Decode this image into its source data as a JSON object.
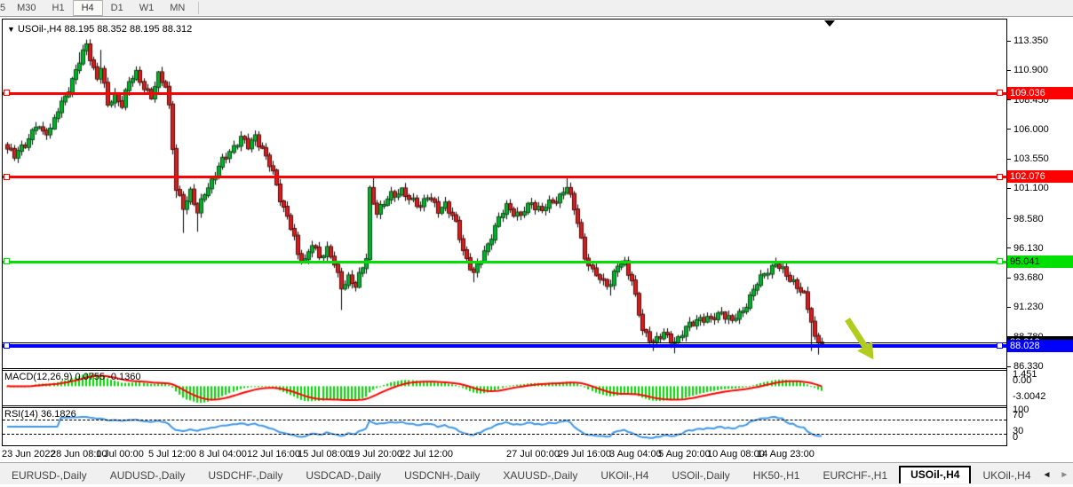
{
  "toolbar": {
    "buttons": [
      "5",
      "M30",
      "H1",
      "H4",
      "D1",
      "W1",
      "MN"
    ],
    "active_index": 3
  },
  "chart": {
    "title_full": "USOil-,H4  88.195 88.352 88.195 88.312",
    "symbol": "USOil-,H4",
    "open": "88.195",
    "high": "88.352",
    "low": "88.195",
    "close": "88.312"
  },
  "price_axis": {
    "ticks": [
      "113.350",
      "110.900",
      "108.450",
      "106.000",
      "103.550",
      "101.100",
      "98.580",
      "96.130",
      "93.680",
      "91.230",
      "88.780",
      "86.330"
    ],
    "tick_values": [
      113.35,
      110.9,
      108.45,
      106.0,
      103.55,
      101.1,
      98.58,
      96.13,
      93.68,
      91.23,
      88.78,
      86.33
    ]
  },
  "hlines": [
    {
      "price": 109.036,
      "label": "109.036",
      "color": "#ff0000",
      "chip_text": "#ffffff",
      "thickness": 3
    },
    {
      "price": 102.076,
      "label": "102.076",
      "color": "#ff0000",
      "chip_text": "#ffffff",
      "thickness": 3
    },
    {
      "price": 95.041,
      "label": "95.041",
      "color": "#00e000",
      "chip_text": "#000000",
      "thickness": 3
    },
    {
      "price": 88.028,
      "label": "88.028",
      "color": "#0000ff",
      "chip_text": "#ffffff",
      "thickness": 4
    }
  ],
  "price_line": {
    "price": 88.312,
    "label": "88.312",
    "color": "#000000",
    "chip_text": "#ffffff",
    "thickness": 1
  },
  "indicators": {
    "macd": {
      "label": "MACD(12,26,9) 0.0755 -0.1360",
      "axis": [
        "1.451",
        "0.00",
        "-3.0042"
      ],
      "hist_color": "#00d800",
      "signal_color": "#ff0000"
    },
    "rsi": {
      "label": "RSI(14) 36.1826",
      "axis": [
        "100",
        "70",
        "30",
        "0"
      ],
      "levels": [
        70,
        30
      ],
      "line_color": "#3e96e6"
    }
  },
  "time_axis": {
    "labels": [
      {
        "text": "23 Jun 2022",
        "x": 2
      },
      {
        "text": "28 Jun 08:00",
        "x": 57
      },
      {
        "text": "1 Jul 00:00",
        "x": 108
      },
      {
        "text": "5 Jul 12:00",
        "x": 167
      },
      {
        "text": "8 Jul 04:00",
        "x": 224
      },
      {
        "text": "12 Jul 16:00",
        "x": 278
      },
      {
        "text": "15 Jul 08:00",
        "x": 335
      },
      {
        "text": "19 Jul 20:00",
        "x": 393
      },
      {
        "text": "22 Jul 12:00",
        "x": 450
      },
      {
        "text": "27 Jul 00:00",
        "x": 570
      },
      {
        "text": "29 Jul 16:00",
        "x": 628
      },
      {
        "text": "3 Aug 04:00",
        "x": 686
      },
      {
        "text": "5 Aug 20:00",
        "x": 741
      },
      {
        "text": "10 Aug 08:00",
        "x": 796
      },
      {
        "text": "14 Aug 23:00",
        "x": 852
      }
    ]
  },
  "tabs": {
    "items": [
      "EURUSD-,Daily",
      "AUDUSD-,Daily",
      "USDCHF-,Daily",
      "USDCAD-,Daily",
      "USDCNH-,Daily",
      "XAUUSD-,Daily",
      "UKOil-,H4",
      "USOil-,Daily",
      "HK50-,H1",
      "EURCHF-,H1",
      "USOil-,H4",
      "UKOil-,H4"
    ],
    "active_index": 10,
    "scroll_left": "◄",
    "scroll_right": "►"
  },
  "annotation": {
    "type": "arrow-down-right",
    "color": "#b2cc1e"
  },
  "chart_data": {
    "type": "candlestick",
    "symbol": "USOil-,H4",
    "timeframe": "H4",
    "title": "USOil-,H4  88.195 88.352 88.195 88.312",
    "ylim": [
      86.25,
      113.6
    ],
    "bars": 228,
    "up_color": "#00b42a",
    "down_color": "#d42020",
    "wick_color": "#000000",
    "price_path": [
      [
        0,
        104.4
      ],
      [
        2,
        103.7
      ],
      [
        4,
        104.6
      ],
      [
        6,
        105.2
      ],
      [
        8,
        106.2
      ],
      [
        10,
        105.8
      ],
      [
        12,
        106.1
      ],
      [
        14,
        107.5
      ],
      [
        16,
        108.6
      ],
      [
        18,
        110.2
      ],
      [
        20,
        111.6
      ],
      [
        22,
        112.9
      ],
      [
        23,
        112.0
      ],
      [
        25,
        110.3
      ],
      [
        26,
        111.2
      ],
      [
        28,
        107.9
      ],
      [
        30,
        108.9
      ],
      [
        32,
        108.1
      ],
      [
        34,
        109.8
      ],
      [
        36,
        110.7
      ],
      [
        38,
        109.6
      ],
      [
        40,
        108.5
      ],
      [
        42,
        110.5
      ],
      [
        44,
        109.8
      ],
      [
        45,
        107.9
      ],
      [
        47,
        100.9
      ],
      [
        49,
        99.6
      ],
      [
        51,
        100.9
      ],
      [
        53,
        99.0
      ],
      [
        55,
        100.7
      ],
      [
        57,
        101.8
      ],
      [
        60,
        103.3
      ],
      [
        63,
        104.6
      ],
      [
        65,
        105.3
      ],
      [
        67,
        104.5
      ],
      [
        69,
        105.5
      ],
      [
        71,
        104.4
      ],
      [
        72,
        103.6
      ],
      [
        74,
        102.4
      ],
      [
        76,
        100.4
      ],
      [
        78,
        98.7
      ],
      [
        80,
        96.9
      ],
      [
        81,
        95.6
      ],
      [
        83,
        95.2
      ],
      [
        85,
        96.4
      ],
      [
        87,
        95.3
      ],
      [
        89,
        96.2
      ],
      [
        91,
        94.9
      ],
      [
        93,
        92.7
      ],
      [
        95,
        93.8
      ],
      [
        97,
        93.1
      ],
      [
        99,
        94.4
      ],
      [
        100,
        95.3
      ],
      [
        101,
        101.0
      ],
      [
        103,
        99.2
      ],
      [
        105,
        99.7
      ],
      [
        107,
        100.6
      ],
      [
        110,
        100.9
      ],
      [
        112,
        100.1
      ],
      [
        115,
        99.8
      ],
      [
        117,
        100.4
      ],
      [
        120,
        99.3
      ],
      [
        122,
        99.9
      ],
      [
        125,
        98.1
      ],
      [
        127,
        96.0
      ],
      [
        130,
        94.0
      ],
      [
        132,
        95.1
      ],
      [
        135,
        97.2
      ],
      [
        137,
        98.5
      ],
      [
        139,
        99.6
      ],
      [
        143,
        98.8
      ],
      [
        146,
        99.9
      ],
      [
        149,
        99.3
      ],
      [
        153,
        100.2
      ],
      [
        156,
        101.2
      ],
      [
        159,
        98.4
      ],
      [
        161,
        95.5
      ],
      [
        163,
        94.1
      ],
      [
        166,
        93.4
      ],
      [
        168,
        93.2
      ],
      [
        170,
        94.6
      ],
      [
        172,
        94.9
      ],
      [
        174,
        93.6
      ],
      [
        177,
        89.2
      ],
      [
        180,
        88.5
      ],
      [
        183,
        88.9
      ],
      [
        186,
        88.4
      ],
      [
        190,
        89.7
      ],
      [
        193,
        90.4
      ],
      [
        196,
        90.1
      ],
      [
        199,
        90.9
      ],
      [
        202,
        90.0
      ],
      [
        205,
        91.0
      ],
      [
        208,
        92.6
      ],
      [
        211,
        94.1
      ],
      [
        214,
        94.8
      ],
      [
        216,
        94.2
      ],
      [
        219,
        93.4
      ],
      [
        222,
        92.1
      ],
      [
        224,
        90.2
      ],
      [
        225,
        88.8
      ],
      [
        227,
        88.3
      ]
    ],
    "spikes": [
      [
        20,
        "high",
        112.4
      ],
      [
        22,
        "high",
        113.45
      ],
      [
        26,
        "high",
        112.6
      ],
      [
        47,
        "low",
        100.3
      ],
      [
        49,
        "low",
        97.4
      ],
      [
        53,
        "low",
        97.5
      ],
      [
        93,
        "low",
        91.0
      ],
      [
        101,
        "low",
        95.3
      ],
      [
        102,
        "high",
        102.15
      ],
      [
        130,
        "low",
        93.3
      ],
      [
        156,
        "high",
        101.95
      ],
      [
        168,
        "low",
        92.2
      ],
      [
        180,
        "low",
        87.6
      ],
      [
        186,
        "low",
        87.4
      ],
      [
        214,
        "high",
        95.35
      ],
      [
        224,
        "low",
        87.6
      ],
      [
        226,
        "low",
        87.3
      ]
    ],
    "hlines": [
      109.036,
      102.076,
      95.041,
      88.028
    ],
    "current_price": 88.312,
    "indicators": {
      "macd_params": [
        12,
        26,
        9
      ],
      "rsi_params": [
        14
      ]
    }
  }
}
